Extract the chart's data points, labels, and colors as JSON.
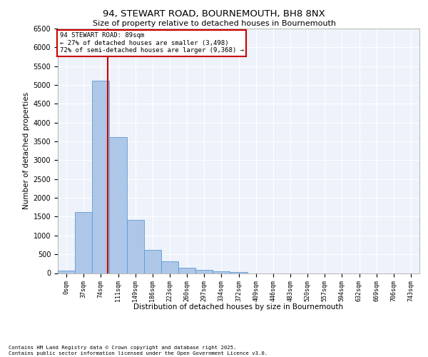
{
  "title_line1": "94, STEWART ROAD, BOURNEMOUTH, BH8 8NX",
  "title_line2": "Size of property relative to detached houses in Bournemouth",
  "xlabel": "Distribution of detached houses by size in Bournemouth",
  "ylabel": "Number of detached properties",
  "bar_labels": [
    "0sqm",
    "37sqm",
    "74sqm",
    "111sqm",
    "149sqm",
    "186sqm",
    "223sqm",
    "260sqm",
    "297sqm",
    "334sqm",
    "372sqm",
    "409sqm",
    "446sqm",
    "483sqm",
    "520sqm",
    "557sqm",
    "594sqm",
    "632sqm",
    "669sqm",
    "706sqm",
    "743sqm"
  ],
  "bar_values": [
    75,
    1620,
    5120,
    3620,
    1420,
    620,
    305,
    140,
    80,
    50,
    30,
    0,
    0,
    0,
    0,
    0,
    0,
    0,
    0,
    0,
    0
  ],
  "bar_color": "#aec6e8",
  "bar_edge_color": "#5b9bd5",
  "background_color": "#eef2fa",
  "grid_color": "#ffffff",
  "vline_x": 2.4,
  "vline_color": "#cc0000",
  "ylim": [
    0,
    6500
  ],
  "yticks": [
    0,
    500,
    1000,
    1500,
    2000,
    2500,
    3000,
    3500,
    4000,
    4500,
    5000,
    5500,
    6000,
    6500
  ],
  "annotation_title": "94 STEWART ROAD: 89sqm",
  "annotation_line1": "← 27% of detached houses are smaller (3,498)",
  "annotation_line2": "72% of semi-detached houses are larger (9,368) →",
  "annotation_box_color": "#cc0000",
  "footer_line1": "Contains HM Land Registry data © Crown copyright and database right 2025.",
  "footer_line2": "Contains public sector information licensed under the Open Government Licence v3.0."
}
